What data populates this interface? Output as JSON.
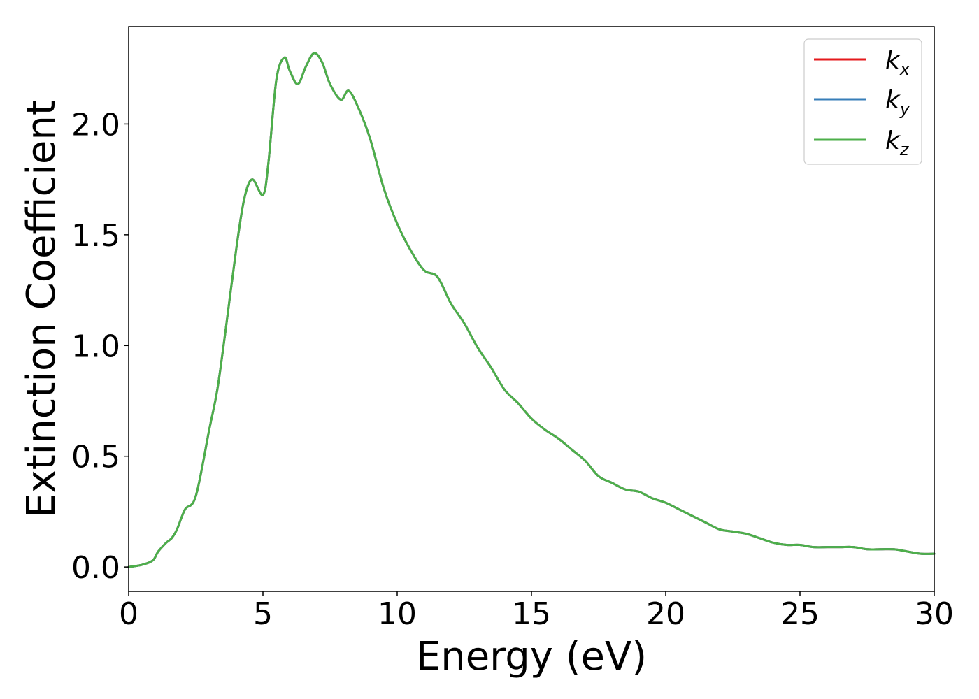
{
  "chart_data": {
    "type": "line",
    "title": "",
    "xlabel": "Energy (eV)",
    "ylabel": "Extinction Coefficient",
    "xlim": [
      0,
      30
    ],
    "ylim": [
      -0.11,
      2.44
    ],
    "xticks": [
      0,
      5,
      10,
      15,
      20,
      25,
      30
    ],
    "xtick_labels": [
      "0",
      "5",
      "10",
      "15",
      "20",
      "25",
      "30"
    ],
    "yticks": [
      0.0,
      0.5,
      1.0,
      1.5,
      2.0
    ],
    "ytick_labels": [
      "0.0",
      "0.5",
      "1.0",
      "1.5",
      "2.0"
    ],
    "grid": false,
    "legend_position": "top-right",
    "x": [
      0,
      0.5,
      0.9,
      1.1,
      1.4,
      1.6,
      1.8,
      2.1,
      2.5,
      3.0,
      3.3,
      3.6,
      4.0,
      4.3,
      4.6,
      5.0,
      5.2,
      5.5,
      5.8,
      6.0,
      6.3,
      6.6,
      6.9,
      7.2,
      7.5,
      7.9,
      8.2,
      8.6,
      9.0,
      9.5,
      10.0,
      10.5,
      11.0,
      11.5,
      12.0,
      12.5,
      13.0,
      13.5,
      14.0,
      14.5,
      15.0,
      15.5,
      16.0,
      16.5,
      17.0,
      17.5,
      18.0,
      18.5,
      19.0,
      19.5,
      20.0,
      20.5,
      21.0,
      21.5,
      22.0,
      22.5,
      23.0,
      23.5,
      24.0,
      24.5,
      25.0,
      25.5,
      26.0,
      26.5,
      27.0,
      27.5,
      28.0,
      28.5,
      29.0,
      29.5,
      30.0
    ],
    "series": [
      {
        "name": "k_x",
        "color": "#e41a1c",
        "values": [
          0.0,
          0.01,
          0.03,
          0.07,
          0.11,
          0.13,
          0.17,
          0.26,
          0.32,
          0.62,
          0.8,
          1.06,
          1.43,
          1.66,
          1.75,
          1.68,
          1.82,
          2.2,
          2.3,
          2.24,
          2.18,
          2.26,
          2.32,
          2.28,
          2.18,
          2.11,
          2.15,
          2.06,
          1.93,
          1.71,
          1.55,
          1.43,
          1.34,
          1.31,
          1.19,
          1.1,
          0.99,
          0.9,
          0.8,
          0.74,
          0.67,
          0.62,
          0.58,
          0.53,
          0.48,
          0.41,
          0.38,
          0.35,
          0.34,
          0.31,
          0.29,
          0.26,
          0.23,
          0.2,
          0.17,
          0.16,
          0.15,
          0.13,
          0.11,
          0.1,
          0.1,
          0.09,
          0.09,
          0.09,
          0.09,
          0.08,
          0.08,
          0.08,
          0.07,
          0.06,
          0.06
        ]
      },
      {
        "name": "k_y",
        "color": "#377eb8",
        "values": [
          0.0,
          0.01,
          0.03,
          0.07,
          0.11,
          0.13,
          0.17,
          0.26,
          0.32,
          0.62,
          0.8,
          1.06,
          1.43,
          1.66,
          1.75,
          1.68,
          1.82,
          2.2,
          2.3,
          2.24,
          2.18,
          2.26,
          2.32,
          2.28,
          2.18,
          2.11,
          2.15,
          2.06,
          1.93,
          1.71,
          1.55,
          1.43,
          1.34,
          1.31,
          1.19,
          1.1,
          0.99,
          0.9,
          0.8,
          0.74,
          0.67,
          0.62,
          0.58,
          0.53,
          0.48,
          0.41,
          0.38,
          0.35,
          0.34,
          0.31,
          0.29,
          0.26,
          0.23,
          0.2,
          0.17,
          0.16,
          0.15,
          0.13,
          0.11,
          0.1,
          0.1,
          0.09,
          0.09,
          0.09,
          0.09,
          0.08,
          0.08,
          0.08,
          0.07,
          0.06,
          0.06
        ]
      },
      {
        "name": "k_z",
        "color": "#4daf4a",
        "values": [
          0.0,
          0.01,
          0.03,
          0.07,
          0.11,
          0.13,
          0.17,
          0.26,
          0.32,
          0.62,
          0.8,
          1.06,
          1.43,
          1.66,
          1.75,
          1.68,
          1.82,
          2.2,
          2.3,
          2.24,
          2.18,
          2.26,
          2.32,
          2.28,
          2.18,
          2.11,
          2.15,
          2.06,
          1.93,
          1.71,
          1.55,
          1.43,
          1.34,
          1.31,
          1.19,
          1.1,
          0.99,
          0.9,
          0.8,
          0.74,
          0.67,
          0.62,
          0.58,
          0.53,
          0.48,
          0.41,
          0.38,
          0.35,
          0.34,
          0.31,
          0.29,
          0.26,
          0.23,
          0.2,
          0.17,
          0.16,
          0.15,
          0.13,
          0.11,
          0.1,
          0.1,
          0.09,
          0.09,
          0.09,
          0.09,
          0.08,
          0.08,
          0.08,
          0.07,
          0.06,
          0.06
        ]
      }
    ],
    "legend": [
      {
        "base": "k",
        "sub": "x",
        "color": "#e41a1c"
      },
      {
        "base": "k",
        "sub": "y",
        "color": "#377eb8"
      },
      {
        "base": "k",
        "sub": "z",
        "color": "#4daf4a"
      }
    ]
  }
}
